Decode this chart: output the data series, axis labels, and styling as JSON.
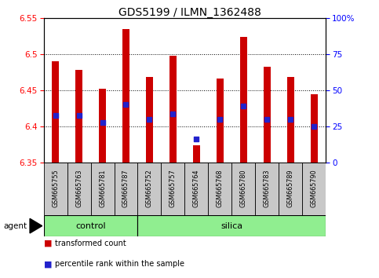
{
  "title": "GDS5199 / ILMN_1362488",
  "samples": [
    "GSM665755",
    "GSM665763",
    "GSM665781",
    "GSM665787",
    "GSM665752",
    "GSM665757",
    "GSM665764",
    "GSM665768",
    "GSM665780",
    "GSM665783",
    "GSM665789",
    "GSM665790"
  ],
  "groups": [
    "control",
    "control",
    "control",
    "control",
    "silica",
    "silica",
    "silica",
    "silica",
    "silica",
    "silica",
    "silica",
    "silica"
  ],
  "bar_tops": [
    6.49,
    6.478,
    6.452,
    6.535,
    6.468,
    6.498,
    6.374,
    6.466,
    6.524,
    6.483,
    6.468,
    6.445
  ],
  "bar_bottoms": [
    6.35,
    6.35,
    6.35,
    6.35,
    6.35,
    6.35,
    6.35,
    6.35,
    6.35,
    6.35,
    6.35,
    6.35
  ],
  "percentile_values": [
    6.415,
    6.415,
    6.405,
    6.43,
    6.41,
    6.418,
    6.383,
    6.41,
    6.428,
    6.41,
    6.41,
    6.4
  ],
  "ylim_left": [
    6.35,
    6.55
  ],
  "yticks_left": [
    6.35,
    6.4,
    6.45,
    6.5,
    6.55
  ],
  "yticks_right": [
    0,
    25,
    50,
    75,
    100
  ],
  "ylim_right": [
    0,
    100
  ],
  "bar_color": "#cc0000",
  "dot_color": "#2222cc",
  "control_color": "#90ee90",
  "silica_color": "#90ee90",
  "control_label": "control",
  "silica_label": "silica",
  "agent_label": "agent",
  "legend1": "transformed count",
  "legend2": "percentile rank within the sample",
  "bar_width": 0.28,
  "group_bar_bg": "#c8c8c8",
  "n_control": 4,
  "n_silica": 8
}
